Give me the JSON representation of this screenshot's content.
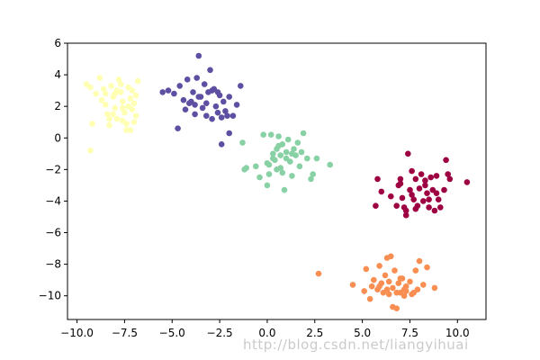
{
  "chart_data": {
    "type": "scatter",
    "title": "",
    "xlabel": "",
    "ylabel": "",
    "xlim": [
      -10.5,
      11.5
    ],
    "ylim": [
      -11.5,
      6
    ],
    "grid": false,
    "legend": "none",
    "x_ticks": [
      "−10.0",
      "−7.5",
      "−5.0",
      "−2.5",
      "0.0",
      "2.5",
      "5.0",
      "7.5",
      "10.0"
    ],
    "x_tick_values": [
      -10,
      -7.5,
      -5,
      -2.5,
      0,
      2.5,
      5,
      7.5,
      10
    ],
    "y_ticks": [
      "6",
      "4",
      "2",
      "0",
      "−2",
      "−4",
      "−6",
      "−8",
      "−10"
    ],
    "y_tick_values": [
      6,
      4,
      2,
      0,
      -2,
      -4,
      -6,
      -8,
      -10
    ],
    "series": [
      {
        "color": "#ffffb3",
        "points": [
          [
            -9.5,
            3.4
          ],
          [
            -9.3,
            3.2
          ],
          [
            -9.2,
            0.9
          ],
          [
            -9.3,
            -0.8
          ],
          [
            -9.0,
            2.8
          ],
          [
            -8.8,
            3.8
          ],
          [
            -8.6,
            3.1
          ],
          [
            -8.5,
            2.1
          ],
          [
            -8.4,
            1.5
          ],
          [
            -8.3,
            0.8
          ],
          [
            -8.2,
            3.3
          ],
          [
            -8.1,
            2.6
          ],
          [
            -8.0,
            1.9
          ],
          [
            -7.9,
            1.2
          ],
          [
            -7.8,
            3.7
          ],
          [
            -7.7,
            2.9
          ],
          [
            -7.6,
            2.3
          ],
          [
            -7.5,
            1.6
          ],
          [
            -7.4,
            0.9
          ],
          [
            -7.3,
            3.2
          ],
          [
            -7.2,
            2.5
          ],
          [
            -7.1,
            1.8
          ],
          [
            -7.0,
            1.0
          ],
          [
            -6.9,
            2.7
          ],
          [
            -6.8,
            3.6
          ],
          [
            -6.9,
            1.4
          ],
          [
            -7.2,
            0.5
          ],
          [
            -7.6,
            1.1
          ],
          [
            -8.0,
            2.8
          ],
          [
            -8.3,
            1.2
          ],
          [
            -7.7,
            3.4
          ],
          [
            -8.7,
            2.4
          ],
          [
            -7.0,
            2.2
          ],
          [
            -7.4,
            0.5
          ],
          [
            -8.1,
            1.5
          ],
          [
            -7.9,
            3.0
          ],
          [
            -7.6,
            1.9
          ],
          [
            -7.3,
            2.0
          ],
          [
            -8.5,
            2.8
          ],
          [
            -7.1,
            3.0
          ]
        ]
      },
      {
        "color": "#5e4fa2",
        "points": [
          [
            -5.5,
            2.9
          ],
          [
            -5.2,
            3.0
          ],
          [
            -4.9,
            2.8
          ],
          [
            -4.7,
            0.6
          ],
          [
            -4.6,
            3.3
          ],
          [
            -4.4,
            2.4
          ],
          [
            -4.3,
            1.8
          ],
          [
            -4.2,
            3.7
          ],
          [
            -4.1,
            2.2
          ],
          [
            -3.9,
            2.9
          ],
          [
            -3.8,
            1.5
          ],
          [
            -3.7,
            3.8
          ],
          [
            -3.6,
            5.2
          ],
          [
            -3.5,
            2.6
          ],
          [
            -3.4,
            1.9
          ],
          [
            -3.3,
            3.4
          ],
          [
            -3.2,
            2.2
          ],
          [
            -3.1,
            2.9
          ],
          [
            -3.0,
            4.3
          ],
          [
            -2.9,
            1.2
          ],
          [
            -2.8,
            3.1
          ],
          [
            -2.7,
            2.0
          ],
          [
            -2.6,
            1.6
          ],
          [
            -2.5,
            2.7
          ],
          [
            -2.4,
            1.3
          ],
          [
            -2.3,
            2.3
          ],
          [
            -2.2,
            1.7
          ],
          [
            -2.1,
            1.4
          ],
          [
            -2.0,
            2.6
          ],
          [
            -1.8,
            1.4
          ],
          [
            -1.6,
            2.1
          ],
          [
            -1.4,
            3.3
          ],
          [
            -2.4,
            -0.4
          ],
          [
            -2.9,
            3.0
          ],
          [
            -3.6,
            2.6
          ],
          [
            -4.0,
            2.3
          ],
          [
            -3.2,
            1.4
          ],
          [
            -2.6,
            2.9
          ],
          [
            -2.0,
            0.3
          ],
          [
            -3.8,
            2.1
          ]
        ]
      },
      {
        "color": "#88d1a4",
        "points": [
          [
            -1.3,
            -0.3
          ],
          [
            -1.2,
            -2.0
          ],
          [
            -1.1,
            -1.9
          ],
          [
            -0.6,
            -1.8
          ],
          [
            -0.4,
            -2.5
          ],
          [
            -0.2,
            0.2
          ],
          [
            0.0,
            -3.0
          ],
          [
            0.1,
            -2.3
          ],
          [
            0.1,
            -1.7
          ],
          [
            0.2,
            0.2
          ],
          [
            0.3,
            -1.0
          ],
          [
            0.4,
            -1.4
          ],
          [
            0.5,
            -0.7
          ],
          [
            0.5,
            -2.0
          ],
          [
            0.6,
            0.1
          ],
          [
            0.7,
            -1.1
          ],
          [
            0.8,
            -0.4
          ],
          [
            0.8,
            -2.2
          ],
          [
            0.9,
            -3.3
          ],
          [
            1.0,
            -0.9
          ],
          [
            1.1,
            -0.1
          ],
          [
            1.2,
            -1.5
          ],
          [
            1.3,
            -2.4
          ],
          [
            1.4,
            -0.7
          ],
          [
            1.5,
            -1.1
          ],
          [
            1.6,
            -0.3
          ],
          [
            1.7,
            -1.8
          ],
          [
            1.8,
            -0.9
          ],
          [
            1.9,
            0.3
          ],
          [
            2.1,
            -1.3
          ],
          [
            2.3,
            -2.6
          ],
          [
            2.4,
            -2.3
          ],
          [
            2.6,
            -1.3
          ],
          [
            3.3,
            -1.7
          ],
          [
            0.3,
            -1.3
          ],
          [
            0.7,
            -1.9
          ],
          [
            1.0,
            -1.3
          ],
          [
            0.6,
            -0.5
          ],
          [
            1.3,
            -1.0
          ],
          [
            0.0,
            -1.6
          ]
        ]
      },
      {
        "color": "#9e0142",
        "points": [
          [
            5.7,
            -4.3
          ],
          [
            6.5,
            -3.7
          ],
          [
            6.8,
            -4.3
          ],
          [
            7.0,
            -2.6
          ],
          [
            7.1,
            -3.8
          ],
          [
            7.2,
            -4.4
          ],
          [
            7.3,
            -4.9
          ],
          [
            7.4,
            -1.0
          ],
          [
            7.5,
            -3.3
          ],
          [
            7.6,
            -2.1
          ],
          [
            7.7,
            -3.9
          ],
          [
            7.8,
            -2.6
          ],
          [
            7.9,
            -4.3
          ],
          [
            8.0,
            -3.2
          ],
          [
            8.1,
            -2.3
          ],
          [
            8.2,
            -4.0
          ],
          [
            8.3,
            -2.7
          ],
          [
            8.4,
            -3.5
          ],
          [
            8.5,
            -4.4
          ],
          [
            8.6,
            -2.5
          ],
          [
            8.7,
            -3.3
          ],
          [
            8.8,
            -4.6
          ],
          [
            8.9,
            -2.4
          ],
          [
            9.0,
            -3.9
          ],
          [
            9.1,
            -4.4
          ],
          [
            9.3,
            -3.3
          ],
          [
            9.4,
            -1.4
          ],
          [
            9.5,
            -2.3
          ],
          [
            9.6,
            -2.6
          ],
          [
            10.5,
            -2.8
          ],
          [
            7.3,
            -4.6
          ],
          [
            6.9,
            -3.0
          ],
          [
            7.8,
            -4.5
          ],
          [
            8.3,
            -3.0
          ],
          [
            7.6,
            -3.6
          ],
          [
            8.9,
            -3.5
          ],
          [
            6.0,
            -3.4
          ],
          [
            5.8,
            -2.6
          ],
          [
            7.0,
            -2.9
          ],
          [
            8.5,
            -3.9
          ]
        ]
      },
      {
        "color": "#f98e52",
        "points": [
          [
            2.7,
            -8.6
          ],
          [
            4.5,
            -9.3
          ],
          [
            5.1,
            -9.7
          ],
          [
            5.2,
            -8.3
          ],
          [
            5.4,
            -10.2
          ],
          [
            5.5,
            -9.4
          ],
          [
            5.6,
            -9.0
          ],
          [
            5.8,
            -9.6
          ],
          [
            5.9,
            -8.1
          ],
          [
            6.0,
            -9.2
          ],
          [
            6.1,
            -9.8
          ],
          [
            6.2,
            -8.7
          ],
          [
            6.3,
            -7.6
          ],
          [
            6.4,
            -9.1
          ],
          [
            6.5,
            -7.5
          ],
          [
            6.6,
            -9.5
          ],
          [
            6.7,
            -8.4
          ],
          [
            6.8,
            -10.8
          ],
          [
            6.9,
            -9.2
          ],
          [
            7.0,
            -9.8
          ],
          [
            7.1,
            -8.9
          ],
          [
            7.2,
            -10.0
          ],
          [
            7.3,
            -9.4
          ],
          [
            7.0,
            -8.9
          ],
          [
            7.5,
            -9.1
          ],
          [
            7.6,
            -9.9
          ],
          [
            7.8,
            -8.4
          ],
          [
            7.9,
            -9.6
          ],
          [
            8.0,
            -7.8
          ],
          [
            8.2,
            -9.3
          ],
          [
            8.4,
            -8.2
          ],
          [
            8.8,
            -9.5
          ],
          [
            6.3,
            -9.6
          ],
          [
            6.6,
            -10.7
          ],
          [
            7.3,
            -9.7
          ],
          [
            5.9,
            -9.4
          ],
          [
            6.8,
            -9.8
          ],
          [
            7.2,
            -9.6
          ],
          [
            6.4,
            -9.9
          ],
          [
            7.7,
            -9.8
          ]
        ]
      }
    ]
  },
  "watermark": "http://blog.csdn.net/liangyihuai"
}
